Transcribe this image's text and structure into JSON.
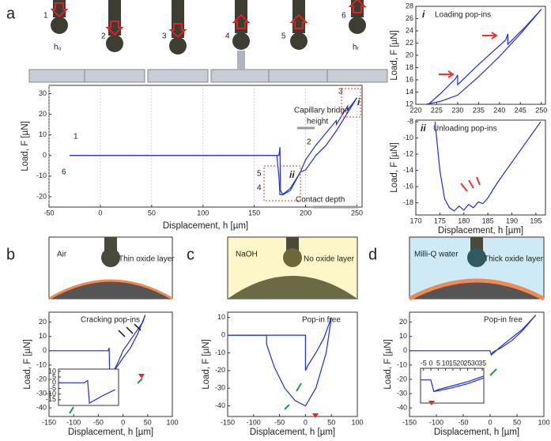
{
  "panel_labels": [
    "a",
    "b",
    "c",
    "d"
  ],
  "schematic": {
    "steps": [
      "1",
      "2",
      "3",
      "4",
      "5",
      "6"
    ],
    "h0": "h₀",
    "hr": "hᵣ",
    "media": [
      "Air",
      "Thin oxide layer",
      "NaOH",
      "No oxide layer",
      "Milli-Q water",
      "Thick oxide layer"
    ]
  },
  "chart_data": [
    {
      "type": "line",
      "xlabel": "Displacement, h [µm]",
      "ylabel": "Load, F [µN]",
      "xlim": [
        -50,
        255
      ],
      "ylim": [
        -25,
        34
      ],
      "xticks": [
        -50,
        0,
        50,
        100,
        150,
        200,
        250
      ],
      "yticks": [
        -20,
        -10,
        0,
        10,
        20,
        30
      ],
      "grid": true,
      "series": [
        {
          "color": "#1f2fd0",
          "x": [
            -30,
            0,
            100,
            174,
            175,
            175.5,
            178,
            185,
            195,
            200,
            210,
            225,
            230,
            230,
            241,
            241,
            250
          ],
          "values": [
            0,
            0,
            0,
            0,
            4,
            -17,
            -19,
            -17,
            -8,
            -2,
            5,
            14,
            17,
            15,
            24,
            22,
            28
          ]
        },
        {
          "color": "#1f2fd0",
          "x": [
            250,
            240,
            230,
            220,
            210,
            200,
            195,
            190,
            185,
            180,
            177,
            175,
            174,
            172,
            100,
            0,
            -30
          ],
          "values": [
            28,
            20,
            12,
            5,
            0,
            -7,
            -8,
            -12,
            -16,
            -18,
            -19,
            -19,
            -10,
            0,
            0,
            0,
            0
          ]
        }
      ],
      "annotations": [
        "1",
        "2",
        "3",
        "4",
        "5",
        "6",
        "i",
        "ii",
        "Capillary bridge",
        "height",
        "Contact depth"
      ]
    },
    {
      "type": "line",
      "ylabel": "Load, F [µN]",
      "xlim": [
        220,
        251
      ],
      "ylim": [
        12,
        28
      ],
      "xticks": [
        220,
        225,
        230,
        235,
        240,
        245,
        250
      ],
      "yticks": [
        12,
        14,
        16,
        18,
        20,
        22,
        24,
        26,
        28
      ],
      "series": [
        {
          "color": "#1f2fd0",
          "x": [
            223,
            226,
            229.5,
            230,
            230,
            235,
            241.5,
            242,
            242,
            246,
            250
          ],
          "values": [
            12,
            13.8,
            16.2,
            16.8,
            15.2,
            18.5,
            22.5,
            23.5,
            21.8,
            24.5,
            27.5
          ]
        },
        {
          "color": "#1f2fd0",
          "x": [
            250,
            245,
            240,
            235,
            230,
            226,
            222.5
          ],
          "values": [
            27.5,
            23.5,
            19.8,
            16.5,
            13.5,
            12.5,
            12
          ]
        }
      ],
      "annotations": [
        "i",
        "Loading pop-ins"
      ]
    },
    {
      "type": "line",
      "xlabel": "Displacement, h [µm]",
      "ylabel": "Load, F [µN]",
      "xlim": [
        170,
        197
      ],
      "ylim": [
        -19.5,
        -7.8
      ],
      "xticks": [
        170,
        175,
        180,
        185,
        190,
        195
      ],
      "yticks": [
        -8,
        -10,
        -12,
        -14,
        -16,
        -18
      ],
      "series": [
        {
          "color": "#1f2fd0",
          "x": [
            174,
            175,
            176,
            177,
            178,
            179,
            180,
            181,
            182,
            183,
            184,
            185,
            187,
            190,
            193,
            196
          ],
          "values": [
            -8,
            -14,
            -17.5,
            -18.6,
            -19,
            -18.4,
            -18.9,
            -18.2,
            -18.6,
            -17.9,
            -18.1,
            -17.4,
            -15.5,
            -13,
            -10.5,
            -8
          ]
        }
      ],
      "annotations": [
        "ii",
        "Unloading pop-ins"
      ]
    },
    {
      "type": "line",
      "xlabel": "Displacement, h [µm]",
      "ylabel": "Load, F [µN]",
      "xlim": [
        -150,
        100
      ],
      "ylim": [
        -46,
        27
      ],
      "xticks": [
        -150,
        -100,
        -50,
        0,
        50,
        100
      ],
      "yticks": [
        -40,
        -30,
        -20,
        -10,
        0,
        10,
        20
      ],
      "series": [
        {
          "color": "#1f2fd0",
          "x": [
            -150,
            -30,
            -28,
            -27,
            -20,
            -10,
            0,
            10,
            20,
            30,
            40,
            45
          ],
          "values": [
            0,
            0,
            2,
            -20,
            -15,
            -8,
            0,
            5,
            10,
            15,
            20,
            25
          ]
        },
        {
          "color": "#1f2fd0",
          "x": [
            45,
            30,
            15,
            0,
            -10,
            -20,
            -27
          ],
          "values": [
            25,
            12,
            2,
            -5,
            -10,
            -15,
            -20
          ]
        }
      ],
      "annotations": [
        "Cracking pop-ins"
      ]
    },
    {
      "type": "line",
      "xlabel": "Displacement, h [µm]",
      "ylabel": "Load, F [µN]",
      "xlim": [
        -150,
        100
      ],
      "ylim": [
        -46,
        13
      ],
      "xticks": [
        -150,
        -100,
        -50,
        0,
        50,
        100
      ],
      "yticks": [
        -40,
        -30,
        -20,
        -10,
        0,
        10
      ],
      "series": [
        {
          "color": "#1f2fd0",
          "x": [
            -150,
            -75,
            -75,
            -60,
            -40,
            -20,
            0,
            20,
            40,
            50
          ],
          "values": [
            0,
            0,
            -5,
            -18,
            -30,
            -37,
            -40,
            -30,
            -10,
            10
          ]
        },
        {
          "color": "#1f2fd0",
          "x": [
            50,
            35,
            20,
            5,
            0,
            0,
            -150
          ],
          "values": [
            10,
            -2,
            -10,
            -17,
            -20,
            0,
            0
          ]
        }
      ],
      "annotations": [
        "Pop-in free"
      ]
    },
    {
      "type": "line",
      "xlabel": "Displacement, h [µm]",
      "ylabel": "Load, F [µN]",
      "xlim": [
        -150,
        100
      ],
      "ylim": [
        -46,
        27
      ],
      "xticks": [
        -150,
        -100,
        -50,
        0,
        50,
        100
      ],
      "yticks": [
        -40,
        -30,
        -20,
        -10,
        0,
        10,
        20
      ],
      "series": [
        {
          "color": "#1f2fd0",
          "x": [
            -150,
            0,
            2,
            5,
            20,
            40,
            60,
            85
          ],
          "values": [
            0,
            0,
            -3,
            -2,
            3,
            9,
            15,
            25
          ]
        },
        {
          "color": "#1f2fd0",
          "x": [
            85,
            60,
            40,
            20,
            5,
            2
          ],
          "values": [
            25,
            14,
            7,
            2,
            -1,
            -3
          ]
        }
      ],
      "annotations": [
        "Pop-in free"
      ]
    },
    {
      "type": "line",
      "xlim": [
        -45,
        -10
      ],
      "ylim": [
        -20,
        12
      ],
      "yticks": [
        10,
        5,
        0,
        -5,
        -10,
        -15
      ],
      "series": [
        {
          "color": "#1f2fd0",
          "x": [
            -45,
            -30,
            -28,
            -27,
            -20,
            -12
          ],
          "values": [
            0,
            0,
            2,
            -18,
            -12,
            -6
          ]
        }
      ]
    },
    {
      "type": "line",
      "xlim": [
        -7,
        36
      ],
      "ylim": [
        -6,
        3
      ],
      "xticks": [
        -5,
        0,
        5,
        10,
        15,
        20,
        25,
        30,
        35
      ],
      "xaxis_position": "top",
      "series": [
        {
          "color": "#1f2fd0",
          "x": [
            -7,
            0,
            2,
            5,
            15,
            25,
            36
          ],
          "values": [
            0,
            0,
            -3,
            -2.5,
            -1.5,
            -0.5,
            1
          ]
        },
        {
          "color": "#1f2fd0",
          "x": [
            36,
            25,
            15,
            5,
            2
          ],
          "values": [
            0.5,
            -1,
            -2,
            -2.8,
            -3
          ]
        }
      ]
    }
  ]
}
